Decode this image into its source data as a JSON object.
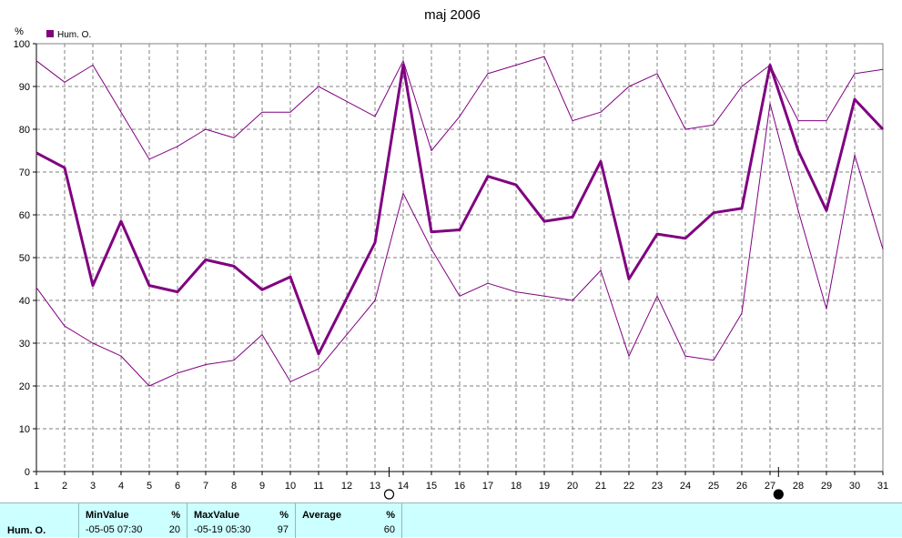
{
  "chart_data": {
    "type": "line",
    "title": "maj 2006",
    "ylabel": "%",
    "xlabel": "",
    "ylim": [
      0,
      100
    ],
    "yticks": [
      0,
      10,
      20,
      30,
      40,
      50,
      60,
      70,
      80,
      90,
      100
    ],
    "x": [
      1,
      2,
      3,
      4,
      5,
      6,
      7,
      8,
      9,
      10,
      11,
      12,
      13,
      14,
      15,
      16,
      17,
      18,
      19,
      20,
      21,
      22,
      23,
      24,
      25,
      26,
      27,
      28,
      29,
      30,
      31
    ],
    "grid": true,
    "legend_placement": "top-left",
    "legend_label": "Hum. O.",
    "series": [
      {
        "role": "max",
        "color": "#800080",
        "values": [
          96,
          91,
          95,
          84,
          73,
          76,
          80,
          78,
          84,
          84,
          90,
          86.5,
          83,
          96,
          75,
          83,
          93,
          95,
          97,
          82,
          84,
          90,
          93,
          80,
          81,
          90,
          95,
          82,
          82,
          93,
          94
        ]
      },
      {
        "role": "avg",
        "color": "#800080",
        "values": [
          74.5,
          71,
          43.5,
          58.5,
          43.5,
          42,
          49.5,
          48,
          42.5,
          45.5,
          27.5,
          40.5,
          53.5,
          95,
          56,
          56.5,
          69,
          67,
          58.5,
          59.5,
          72.5,
          45,
          55.5,
          54.5,
          60.5,
          61.5,
          95,
          75,
          61,
          87,
          80
        ]
      },
      {
        "role": "min",
        "color": "#800080",
        "values": [
          43,
          34,
          30,
          27,
          20,
          23,
          25,
          26,
          32,
          21,
          24,
          32,
          40,
          65,
          52,
          41,
          44,
          42,
          41,
          40,
          47,
          27,
          41,
          27,
          26,
          37,
          86,
          61,
          38,
          74,
          52
        ]
      }
    ],
    "markers": {
      "min_day": 13.5,
      "max_day": 27.3
    }
  },
  "footer": {
    "sensor": "Hum. O.",
    "min": {
      "label": "MinValue",
      "unit": "%",
      "time": "-05-05  07:30",
      "value": "20"
    },
    "max": {
      "label": "MaxValue",
      "unit": "%",
      "time": "-05-19  05:30",
      "value": "97"
    },
    "avg": {
      "label": "Average",
      "unit": "%",
      "value": "60"
    }
  }
}
